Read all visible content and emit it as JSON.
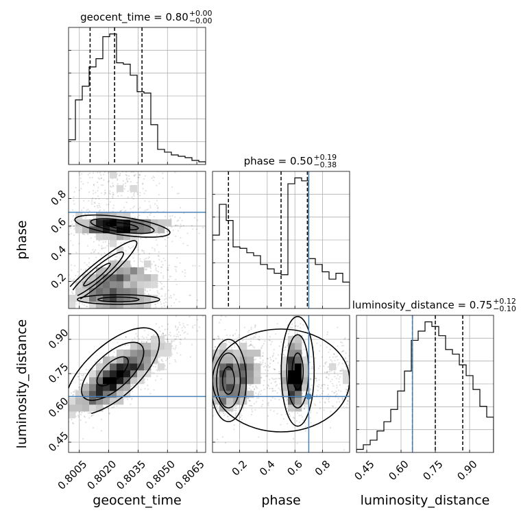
{
  "chart_data": {
    "type": "corner",
    "parameters": [
      "geocent_time",
      "phase",
      "luminosity_distance"
    ],
    "axis_labels": [
      "geocent_time",
      "phase",
      "luminosity_distance"
    ],
    "titles": [
      {
        "param": "geocent_time",
        "label": "geocent_time = 0.80",
        "median": "0.80",
        "plus": "+0.00",
        "minus": "−0.00"
      },
      {
        "param": "phase",
        "label": "phase = 0.50",
        "median": "0.50",
        "plus": "+0.19",
        "minus": "−0.38"
      },
      {
        "param": "luminosity_distance",
        "label": "luminosity_distance = 0.75",
        "median": "0.75",
        "plus": "+0.12",
        "minus": "−0.10"
      }
    ],
    "ranges": {
      "geocent_time": [
        0.79995,
        0.80695
      ],
      "phase": [
        0.005,
        0.995
      ],
      "luminosity_distance": [
        0.405,
        1.005
      ]
    },
    "ticks": {
      "geocent_time": [
        0.8005,
        0.802,
        0.8035,
        0.805,
        0.8065
      ],
      "geocent_time_labels": [
        "0.8005",
        "0.8020",
        "0.8035",
        "0.8050",
        "0.8065"
      ],
      "phase": [
        0.2,
        0.4,
        0.6,
        0.8
      ],
      "phase_labels": [
        "0.2",
        "0.4",
        "0.6",
        "0.8"
      ],
      "luminosity_distance": [
        0.45,
        0.6,
        0.75,
        0.9
      ],
      "luminosity_distance_labels": [
        "0.45",
        "0.60",
        "0.75",
        "0.90"
      ]
    },
    "quantiles": {
      "geocent_time": [
        0.80105,
        0.8023,
        0.8037
      ],
      "phase": [
        0.12,
        0.5,
        0.69
      ],
      "luminosity_distance": [
        0.65,
        0.75,
        0.87
      ]
    },
    "truths": {
      "phase": 0.7,
      "luminosity_distance": 0.65
    },
    "histograms": {
      "geocent_time": {
        "edges": [
          0.79995,
          0.8003,
          0.80065,
          0.801,
          0.80135,
          0.8017,
          0.80205,
          0.8024,
          0.80275,
          0.8031,
          0.80345,
          0.8038,
          0.80415,
          0.8045,
          0.80485,
          0.8052,
          0.80555,
          0.8059,
          0.80625,
          0.8066,
          0.80695
        ],
        "counts": [
          18,
          47,
          57,
          71,
          77,
          93,
          95,
          74,
          73,
          65,
          53,
          52,
          29,
          11,
          9,
          7,
          6,
          5,
          3,
          2
        ]
      },
      "phase": {
        "edges": [
          0.005,
          0.0545,
          0.104,
          0.1535,
          0.203,
          0.2525,
          0.302,
          0.3515,
          0.401,
          0.4505,
          0.5,
          0.5495,
          0.599,
          0.6485,
          0.698,
          0.7475,
          0.797,
          0.8465,
          0.896,
          0.9455,
          0.995
        ],
        "counts": [
          50,
          71,
          60,
          42,
          41,
          38,
          36,
          30,
          27,
          24,
          23,
          85,
          89,
          87,
          34,
          30,
          25,
          20,
          24,
          18
        ]
      },
      "luminosity_distance": {
        "edges": [
          0.405,
          0.435,
          0.465,
          0.495,
          0.525,
          0.555,
          0.585,
          0.615,
          0.645,
          0.675,
          0.705,
          0.735,
          0.765,
          0.795,
          0.825,
          0.855,
          0.885,
          0.915,
          0.945,
          0.975,
          1.005
        ],
        "counts": [
          2,
          5,
          8,
          14,
          20,
          28,
          40,
          53,
          73,
          79,
          85,
          82,
          76,
          67,
          64,
          57,
          50,
          41,
          30,
          23
        ]
      }
    }
  }
}
